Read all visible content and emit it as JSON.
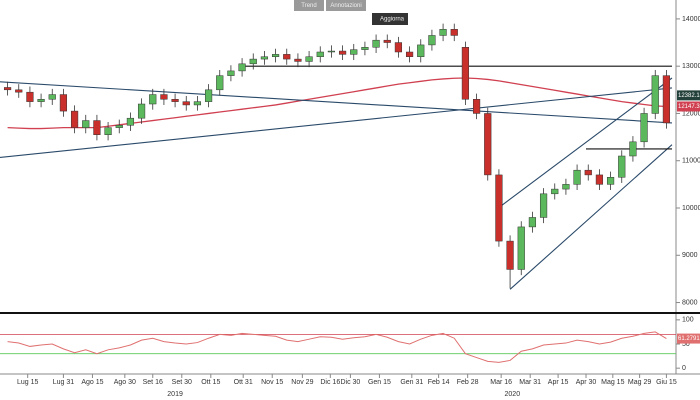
{
  "chart_data": {
    "type": "candlestick",
    "toolbar": [
      "Trend",
      "Annotazioni",
      "Aggiorna"
    ],
    "up_color": "#5cb85c",
    "down_color": "#c9302c",
    "open": [
      12550,
      12500,
      12450,
      12250,
      12300,
      12400,
      12050,
      11700,
      11850,
      11550,
      11700,
      11750,
      11900,
      12200,
      12400,
      12300,
      12250,
      12180,
      12250,
      12500,
      12800,
      12900,
      13050,
      13150,
      13200,
      13250,
      13150,
      13100,
      13200,
      13300,
      13320,
      13250,
      13350,
      13400,
      13550,
      13500,
      13300,
      13200,
      13450,
      13650,
      13780,
      13400,
      12300,
      12000,
      10700,
      9300,
      8700,
      9600,
      9800,
      10300,
      10400,
      10500,
      10800,
      10700,
      10500,
      10650,
      11100,
      11400,
      12000,
      12800
    ],
    "high": [
      12670,
      12620,
      12570,
      12420,
      12520,
      12520,
      12170,
      11970,
      11970,
      11820,
      11870,
      12020,
      12320,
      12520,
      12520,
      12420,
      12370,
      12370,
      12620,
      12920,
      13020,
      13170,
      13270,
      13320,
      13370,
      13370,
      13270,
      13320,
      13420,
      13440,
      13440,
      13470,
      13520,
      13670,
      13670,
      13620,
      13420,
      13570,
      13770,
      13900,
      13900,
      13520,
      12420,
      12120,
      10820,
      9420,
      9720,
      9920,
      10420,
      10520,
      10620,
      10920,
      10920,
      10820,
      10770,
      11220,
      11520,
      12120,
      12920,
      12920
    ],
    "low": [
      12380,
      12330,
      12130,
      12130,
      12180,
      11930,
      11580,
      11580,
      11430,
      11430,
      11580,
      11630,
      11780,
      12080,
      12180,
      12130,
      12060,
      12060,
      12130,
      12380,
      12680,
      12780,
      12930,
      13030,
      13080,
      13030,
      12980,
      12980,
      13080,
      13180,
      13130,
      13130,
      13230,
      13280,
      13380,
      13180,
      13080,
      13080,
      13330,
      13530,
      13530,
      12180,
      11880,
      10580,
      9180,
      8300,
      8580,
      9480,
      9680,
      10180,
      10280,
      10380,
      10580,
      10380,
      10380,
      10530,
      10980,
      11280,
      11880,
      11680
    ],
    "close": [
      12500,
      12450,
      12250,
      12300,
      12400,
      12050,
      11700,
      11850,
      11550,
      11700,
      11750,
      11900,
      12200,
      12400,
      12300,
      12250,
      12180,
      12250,
      12500,
      12800,
      12900,
      13050,
      13150,
      13200,
      13250,
      13150,
      13100,
      13200,
      13300,
      13320,
      13250,
      13350,
      13400,
      13550,
      13500,
      13300,
      13200,
      13450,
      13650,
      13780,
      13650,
      12300,
      12000,
      10700,
      9300,
      8700,
      9600,
      9800,
      10300,
      10400,
      10500,
      10800,
      10700,
      10500,
      10650,
      11100,
      11400,
      12000,
      12800,
      11800
    ],
    "overlays": [
      {
        "color": "#d04050",
        "values": [
          11700,
          11690,
          11680,
          11680,
          11690,
          11700,
          11700,
          11700,
          11700,
          11730,
          11760,
          11790,
          11820,
          11850,
          11880,
          11910,
          11940,
          11970,
          12000,
          12030,
          12060,
          12090,
          12120,
          12150,
          12180,
          12220,
          12260,
          12300,
          12340,
          12380,
          12420,
          12460,
          12500,
          12540,
          12580,
          12620,
          12650,
          12680,
          12710,
          12730,
          12745,
          12750,
          12740,
          12720,
          12690,
          12650,
          12610,
          12570,
          12530,
          12490,
          12450,
          12410,
          12370,
          12330,
          12290,
          12250,
          12220,
          12190,
          12160,
          12147.35
        ]
      }
    ],
    "trendlines": [
      {
        "x": [
          -0.7,
          59.5
        ],
        "y": [
          12670,
          11800
        ],
        "color": "#2a4a6a"
      },
      {
        "x": [
          -0.7,
          59.5
        ],
        "y": [
          11070,
          12540
        ],
        "color": "#2a4a6a"
      },
      {
        "x": [
          45,
          59.5
        ],
        "y": [
          8280,
          11340
        ],
        "color": "#2a4a6a"
      },
      {
        "x": [
          44,
          59.5
        ],
        "y": [
          10010,
          12750
        ],
        "color": "#2a4a6a"
      },
      {
        "x": [
          21.3,
          59.5
        ],
        "y": [
          13000,
          13000
        ],
        "color": "#111111"
      },
      {
        "x": [
          51.8,
          59.5
        ],
        "y": [
          11250,
          11250
        ],
        "color": "#111111"
      }
    ],
    "price_tags": [
      {
        "value": 12382.14,
        "color": "#24403a"
      },
      {
        "value": 12147.35,
        "color": "#d04050"
      }
    ],
    "ylim": [
      7800,
      14400
    ],
    "yticks": [
      8000,
      9000,
      10000,
      11000,
      12000,
      13000,
      14000
    ],
    "rsi": [
      55,
      52,
      45,
      48,
      50,
      40,
      32,
      38,
      30,
      38,
      42,
      48,
      58,
      62,
      55,
      52,
      50,
      53,
      62,
      70,
      68,
      72,
      70,
      68,
      66,
      58,
      55,
      60,
      65,
      64,
      60,
      63,
      65,
      70,
      64,
      55,
      50,
      60,
      68,
      72,
      62,
      30,
      22,
      14,
      12,
      16,
      35,
      40,
      48,
      50,
      52,
      58,
      55,
      50,
      54,
      62,
      66,
      72,
      75,
      61.2791
    ],
    "rsi_color": "#e07070",
    "rsi_ylim": [
      -10,
      108
    ],
    "rsi_yticks": [
      0,
      50,
      100
    ],
    "rsi_levels": [
      {
        "value": 70,
        "color": "#d04050"
      },
      {
        "value": 30,
        "color": "#5cc85c"
      }
    ],
    "xticks": [
      {
        "value": 1.8,
        "label": "Lug 15"
      },
      {
        "value": 5.0,
        "label": "Lug 31"
      },
      {
        "value": 7.6,
        "label": "Ago 15"
      },
      {
        "value": 10.5,
        "label": "Ago 30"
      },
      {
        "value": 13.0,
        "label": "Set 16"
      },
      {
        "value": 15.6,
        "label": "Set 30"
      },
      {
        "value": 18.2,
        "label": "Ott 15"
      },
      {
        "value": 21.1,
        "label": "Ott 31"
      },
      {
        "value": 23.7,
        "label": "Nov 15"
      },
      {
        "value": 26.4,
        "label": "Nov 29"
      },
      {
        "value": 28.9,
        "label": "Dic 16"
      },
      {
        "value": 30.7,
        "label": "Dic 30"
      },
      {
        "value": 33.3,
        "label": "Gen 15"
      },
      {
        "value": 36.2,
        "label": "Gen 31"
      },
      {
        "value": 38.6,
        "label": "Feb 14"
      },
      {
        "value": 41.2,
        "label": "Feb 28"
      },
      {
        "value": 44.2,
        "label": "Mar 16"
      },
      {
        "value": 46.8,
        "label": "Mar 31"
      },
      {
        "value": 49.3,
        "label": "Apr 15"
      },
      {
        "value": 51.8,
        "label": "Apr 30"
      },
      {
        "value": 54.2,
        "label": "Mag 15"
      },
      {
        "value": 56.6,
        "label": "Mag 29"
      },
      {
        "value": 59.0,
        "label": "Giu 15"
      }
    ],
    "years": [
      {
        "value": 15.0,
        "label": "2019"
      },
      {
        "value": 45.2,
        "label": "2020"
      }
    ]
  }
}
